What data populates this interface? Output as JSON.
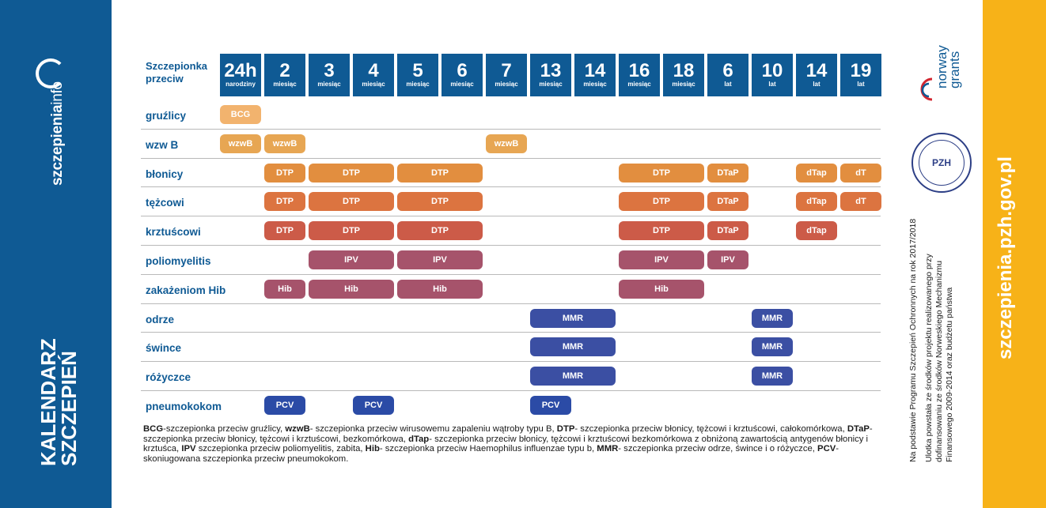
{
  "brand": {
    "logo_main": "szczepienia",
    "logo_suffix": "info"
  },
  "title": {
    "line1": "KALENDARZ",
    "line2": "SZCZEPIEŃ"
  },
  "header_label": "Szczepionka przeciw",
  "columns": [
    {
      "num": "24h",
      "unit": "narodziny"
    },
    {
      "num": "2",
      "unit": "miesiąc"
    },
    {
      "num": "3",
      "unit": "miesiąc"
    },
    {
      "num": "4",
      "unit": "miesiąc"
    },
    {
      "num": "5",
      "unit": "miesiąc"
    },
    {
      "num": "6",
      "unit": "miesiąc"
    },
    {
      "num": "7",
      "unit": "miesiąc"
    },
    {
      "num": "13",
      "unit": "miesiąc"
    },
    {
      "num": "14",
      "unit": "miesiąc"
    },
    {
      "num": "16",
      "unit": "miesiąc"
    },
    {
      "num": "18",
      "unit": "miesiąc"
    },
    {
      "num": "6",
      "unit": "lat"
    },
    {
      "num": "10",
      "unit": "lat"
    },
    {
      "num": "14",
      "unit": "lat"
    },
    {
      "num": "19",
      "unit": "lat"
    }
  ],
  "rows": [
    {
      "label": "gruźlicy",
      "bars": [
        {
          "start": 0,
          "span": 1,
          "text": "BCG",
          "color": "#f2b36e"
        }
      ]
    },
    {
      "label": "wzw B",
      "bars": [
        {
          "start": 0,
          "span": 1,
          "text": "wzwB",
          "color": "#e7a653"
        },
        {
          "start": 1,
          "span": 1,
          "text": "wzwB",
          "color": "#e7a653"
        },
        {
          "start": 6,
          "span": 1,
          "text": "wzwB",
          "color": "#e7a653"
        }
      ]
    },
    {
      "label": "błonicy",
      "bars": [
        {
          "start": 1,
          "span": 1,
          "text": "DTP",
          "color": "#e28e3f"
        },
        {
          "start": 2,
          "span": 2,
          "text": "DTP",
          "color": "#e28e3f"
        },
        {
          "start": 4,
          "span": 2,
          "text": "DTP",
          "color": "#e28e3f"
        },
        {
          "start": 9,
          "span": 2,
          "text": "DTP",
          "color": "#e28e3f"
        },
        {
          "start": 11,
          "span": 1,
          "text": "DTaP",
          "color": "#e28e3f"
        },
        {
          "start": 13,
          "span": 1,
          "text": "dTap",
          "color": "#e28e3f"
        },
        {
          "start": 14,
          "span": 1,
          "text": "dT",
          "color": "#e28e3f"
        }
      ]
    },
    {
      "label": "tężcowi",
      "bars": [
        {
          "start": 1,
          "span": 1,
          "text": "DTP",
          "color": "#dc7440"
        },
        {
          "start": 2,
          "span": 2,
          "text": "DTP",
          "color": "#dc7440"
        },
        {
          "start": 4,
          "span": 2,
          "text": "DTP",
          "color": "#dc7440"
        },
        {
          "start": 9,
          "span": 2,
          "text": "DTP",
          "color": "#dc7440"
        },
        {
          "start": 11,
          "span": 1,
          "text": "DTaP",
          "color": "#dc7440"
        },
        {
          "start": 13,
          "span": 1,
          "text": "dTap",
          "color": "#dc7440"
        },
        {
          "start": 14,
          "span": 1,
          "text": "dT",
          "color": "#dc7440"
        }
      ]
    },
    {
      "label": "krztuścowi",
      "bars": [
        {
          "start": 1,
          "span": 1,
          "text": "DTP",
          "color": "#cc5b48"
        },
        {
          "start": 2,
          "span": 2,
          "text": "DTP",
          "color": "#cc5b48"
        },
        {
          "start": 4,
          "span": 2,
          "text": "DTP",
          "color": "#cc5b48"
        },
        {
          "start": 9,
          "span": 2,
          "text": "DTP",
          "color": "#cc5b48"
        },
        {
          "start": 11,
          "span": 1,
          "text": "DTaP",
          "color": "#cc5b48"
        },
        {
          "start": 13,
          "span": 1,
          "text": "dTap",
          "color": "#cc5b48"
        }
      ]
    },
    {
      "label": "poliomyelitis",
      "bars": [
        {
          "start": 2,
          "span": 2,
          "text": "IPV",
          "color": "#a6536b"
        },
        {
          "start": 4,
          "span": 2,
          "text": "IPV",
          "color": "#a6536b"
        },
        {
          "start": 9,
          "span": 2,
          "text": "IPV",
          "color": "#a6536b"
        },
        {
          "start": 11,
          "span": 1,
          "text": "IPV",
          "color": "#a6536b"
        }
      ]
    },
    {
      "label": "zakażeniom Hib",
      "bars": [
        {
          "start": 1,
          "span": 1,
          "text": "Hib",
          "color": "#a6536b"
        },
        {
          "start": 2,
          "span": 2,
          "text": "Hib",
          "color": "#a6536b"
        },
        {
          "start": 4,
          "span": 2,
          "text": "Hib",
          "color": "#a6536b"
        },
        {
          "start": 9,
          "span": 2,
          "text": "Hib",
          "color": "#a6536b"
        }
      ]
    },
    {
      "label": "odrze",
      "bars": [
        {
          "start": 7,
          "span": 2,
          "text": "MMR",
          "color": "#3b4fa3"
        },
        {
          "start": 12,
          "span": 1,
          "text": "MMR",
          "color": "#3b4fa3"
        }
      ]
    },
    {
      "label": "śwince",
      "bars": [
        {
          "start": 7,
          "span": 2,
          "text": "MMR",
          "color": "#3b4fa3"
        },
        {
          "start": 12,
          "span": 1,
          "text": "MMR",
          "color": "#3b4fa3"
        }
      ]
    },
    {
      "label": "różyczce",
      "bars": [
        {
          "start": 7,
          "span": 2,
          "text": "MMR",
          "color": "#3b4fa3"
        },
        {
          "start": 12,
          "span": 1,
          "text": "MMR",
          "color": "#3b4fa3"
        }
      ]
    },
    {
      "label": "pneumokokom",
      "bars": [
        {
          "start": 1,
          "span": 1,
          "text": "PCV",
          "color": "#2b4ba6"
        },
        {
          "start": 3,
          "span": 1,
          "text": "PCV",
          "color": "#2b4ba6"
        },
        {
          "start": 7,
          "span": 1,
          "text": "PCV",
          "color": "#2b4ba6"
        }
      ]
    }
  ],
  "legend": [
    {
      "b": "BCG",
      "t": "-szczepionka przeciw gruźlicy, "
    },
    {
      "b": "wzwB",
      "t": "- szczepionka przeciw wirusowemu zapaleniu wątroby typu B, "
    },
    {
      "b": "DTP",
      "t": "- szczepionka przeciw błonicy, tężcowi i krztuścowi, całokomórkowa, "
    },
    {
      "b": "DTaP",
      "t": "- szczepionka przeciw błonicy, tężcowi i krztuścowi, bezkomórkowa, "
    },
    {
      "b": "dTap",
      "t": "- szczepionka przeciw błonicy, tężcowi i krztuścowi bezkomórkowa z obniżoną zawartością antygenów błonicy i krztuśca, "
    },
    {
      "b": "IPV",
      "t": " szczepionka przeciw poliomyelitis, zabita, "
    },
    {
      "b": "Hib",
      "t": "- szczepionka przeciw Haemophilus influenzae typu b, "
    },
    {
      "b": "MMR",
      "t": "- szczepionka przeciw odrze, śwince i o różyczce, "
    },
    {
      "b": "PCV",
      "t": "- skoniugowana szczepionka przeciw pneumokokom."
    }
  ],
  "side_note": [
    "Na podstawie Programu Szczepień Ochronnych na rok 2017/2018",
    "Ulotka powstała ze środków projektu realizowanego przy",
    "dofinansowaniu ze środków Norweskiego Mechanizmu",
    "Finansowego 2009-2014 oraz budżetu państwa"
  ],
  "norway": {
    "line1": "norway",
    "line2": "grants"
  },
  "seal_text": "PZH",
  "site_url": "szczepienia.pzh.gov.pl"
}
